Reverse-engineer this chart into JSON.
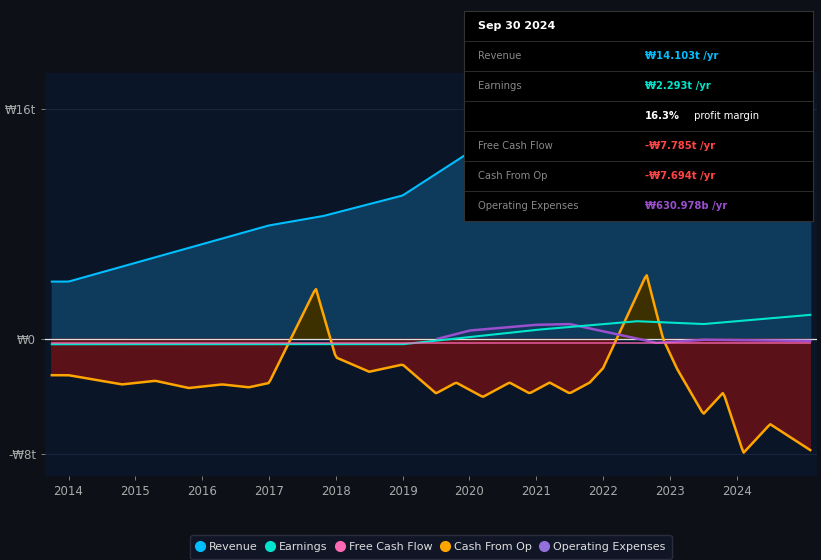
{
  "background_color": "#0d1117",
  "plot_bg_color": "#0a1628",
  "ylabel_top": "₩16t",
  "ylabel_zero": "₩0",
  "ylabel_bot": "-₩8t",
  "x_labels": [
    "2014",
    "2015",
    "2016",
    "2017",
    "2018",
    "2019",
    "2020",
    "2021",
    "2022",
    "2023",
    "2024"
  ],
  "legend": [
    {
      "label": "Revenue",
      "color": "#00bfff"
    },
    {
      "label": "Earnings",
      "color": "#00e5cc"
    },
    {
      "label": "Free Cash Flow",
      "color": "#ff69b4"
    },
    {
      "label": "Cash From Op",
      "color": "#ffa500"
    },
    {
      "label": "Operating Expenses",
      "color": "#9370db"
    }
  ],
  "revenue_color": "#00bfff",
  "revenue_fill": "#0e3a5c",
  "earnings_color": "#00e5cc",
  "fcf_color": "#ff69b4",
  "cashop_color": "#ffa500",
  "cashop_fill_pos": "#3a3000",
  "cashop_fill_neg": "#5a1515",
  "opex_color": "#9a4fcf",
  "zero_line_color": "#cccccc",
  "grid_color": "#1a2540"
}
